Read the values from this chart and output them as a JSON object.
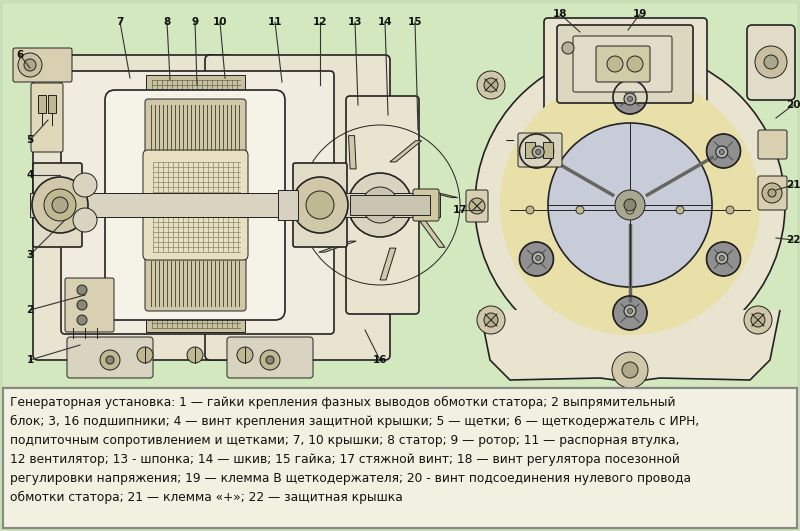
{
  "bg_color": "#c8deb5",
  "diagram_bg": "#d8e8c8",
  "text_box_bg": "#f0f0e0",
  "text_box_border": "#999999",
  "title_text": "Генераторная установка: 1 — гайки крепления фазных выводов обмотки статора; 2 выпрямительный\nблок; 3, 16 подшипники; 4 — винт крепления защитной крышки; 5 — щетки; 6 — щеткодержатель с ИРН,\nподпиточным сопротивлением и щетками; 7, 10 крышки; 8 статор; 9 — ротор; 11 — распорная втулка,\n12 вентилятор; 13 - шпонка; 14 — шкив; 15 гайка; 17 стяжной винт; 18 — винт регулятора посезонной\nрегулировки напряжения; 19 — клемма В щеткодержателя; 20 - винт подсоединения нулевого провода\nобмотки статора; 21 — клемма «+»; 22 — защитная крышка",
  "figsize": [
    8.0,
    5.31
  ],
  "dpi": 100,
  "lc": "#222222",
  "hatch_color": "#555555",
  "fill_light": "#f0ede0",
  "fill_mid": "#e0d8c0",
  "fill_dark": "#c8c0a0",
  "fill_gray": "#b8b8b0",
  "fill_white": "#f8f8f4",
  "fill_yellow": "#e8e0b0",
  "fill_blue_gray": "#c0c4d0"
}
